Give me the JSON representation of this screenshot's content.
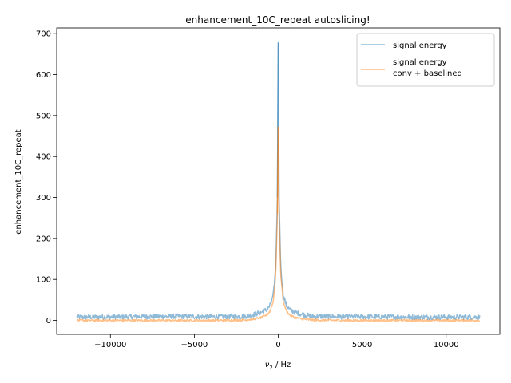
{
  "chart_data": {
    "type": "line",
    "title": "enhancement_10C_repeat autoslicing!",
    "xlabel_main": "ν",
    "xlabel_sub": "2",
    "xlabel_rest": " / Hz",
    "ylabel": "enhancement_10C_repeat",
    "xlim": [
      -13200,
      13200
    ],
    "ylim": [
      -34,
      714
    ],
    "xticks": [
      -10000,
      -5000,
      0,
      5000,
      10000
    ],
    "xtick_labels": [
      "−10000",
      "−5000",
      "0",
      "5000",
      "10000"
    ],
    "yticks": [
      0,
      100,
      200,
      300,
      400,
      500,
      600,
      700
    ],
    "ytick_labels": [
      "0",
      "100",
      "200",
      "300",
      "400",
      "500",
      "600",
      "700"
    ],
    "grid": false,
    "legend_position": "upper-right",
    "series": [
      {
        "name": "signal energy",
        "color": "#1f77b4",
        "opacity": 0.5,
        "x": [
          -12000,
          -9000,
          -6000,
          -4000,
          -2000,
          -1500,
          -1000,
          -700,
          -500,
          -300,
          -150,
          -50,
          0,
          50,
          150,
          300,
          500,
          700,
          1000,
          1500,
          2000,
          4000,
          6000,
          9000,
          12000
        ],
        "y": [
          8,
          9,
          10,
          9,
          10,
          14,
          20,
          26,
          35,
          60,
          130,
          300,
          678,
          300,
          130,
          60,
          35,
          26,
          20,
          14,
          10,
          9,
          9,
          8,
          8
        ],
        "noise": 6
      },
      {
        "name": "signal energy\nconv + baselined",
        "color": "#ff7f0e",
        "opacity": 0.5,
        "x": [
          -12000,
          -9000,
          -6000,
          -4000,
          -2000,
          -1500,
          -1000,
          -700,
          -500,
          -300,
          -150,
          -50,
          0,
          50,
          150,
          300,
          500,
          700,
          1000,
          1500,
          2000,
          4000,
          6000,
          9000,
          12000
        ],
        "y": [
          0,
          0,
          0,
          0,
          1,
          3,
          7,
          13,
          22,
          45,
          110,
          260,
          472,
          260,
          110,
          45,
          22,
          13,
          7,
          3,
          1,
          0,
          0,
          0,
          0
        ],
        "noise": 2.5
      }
    ]
  }
}
